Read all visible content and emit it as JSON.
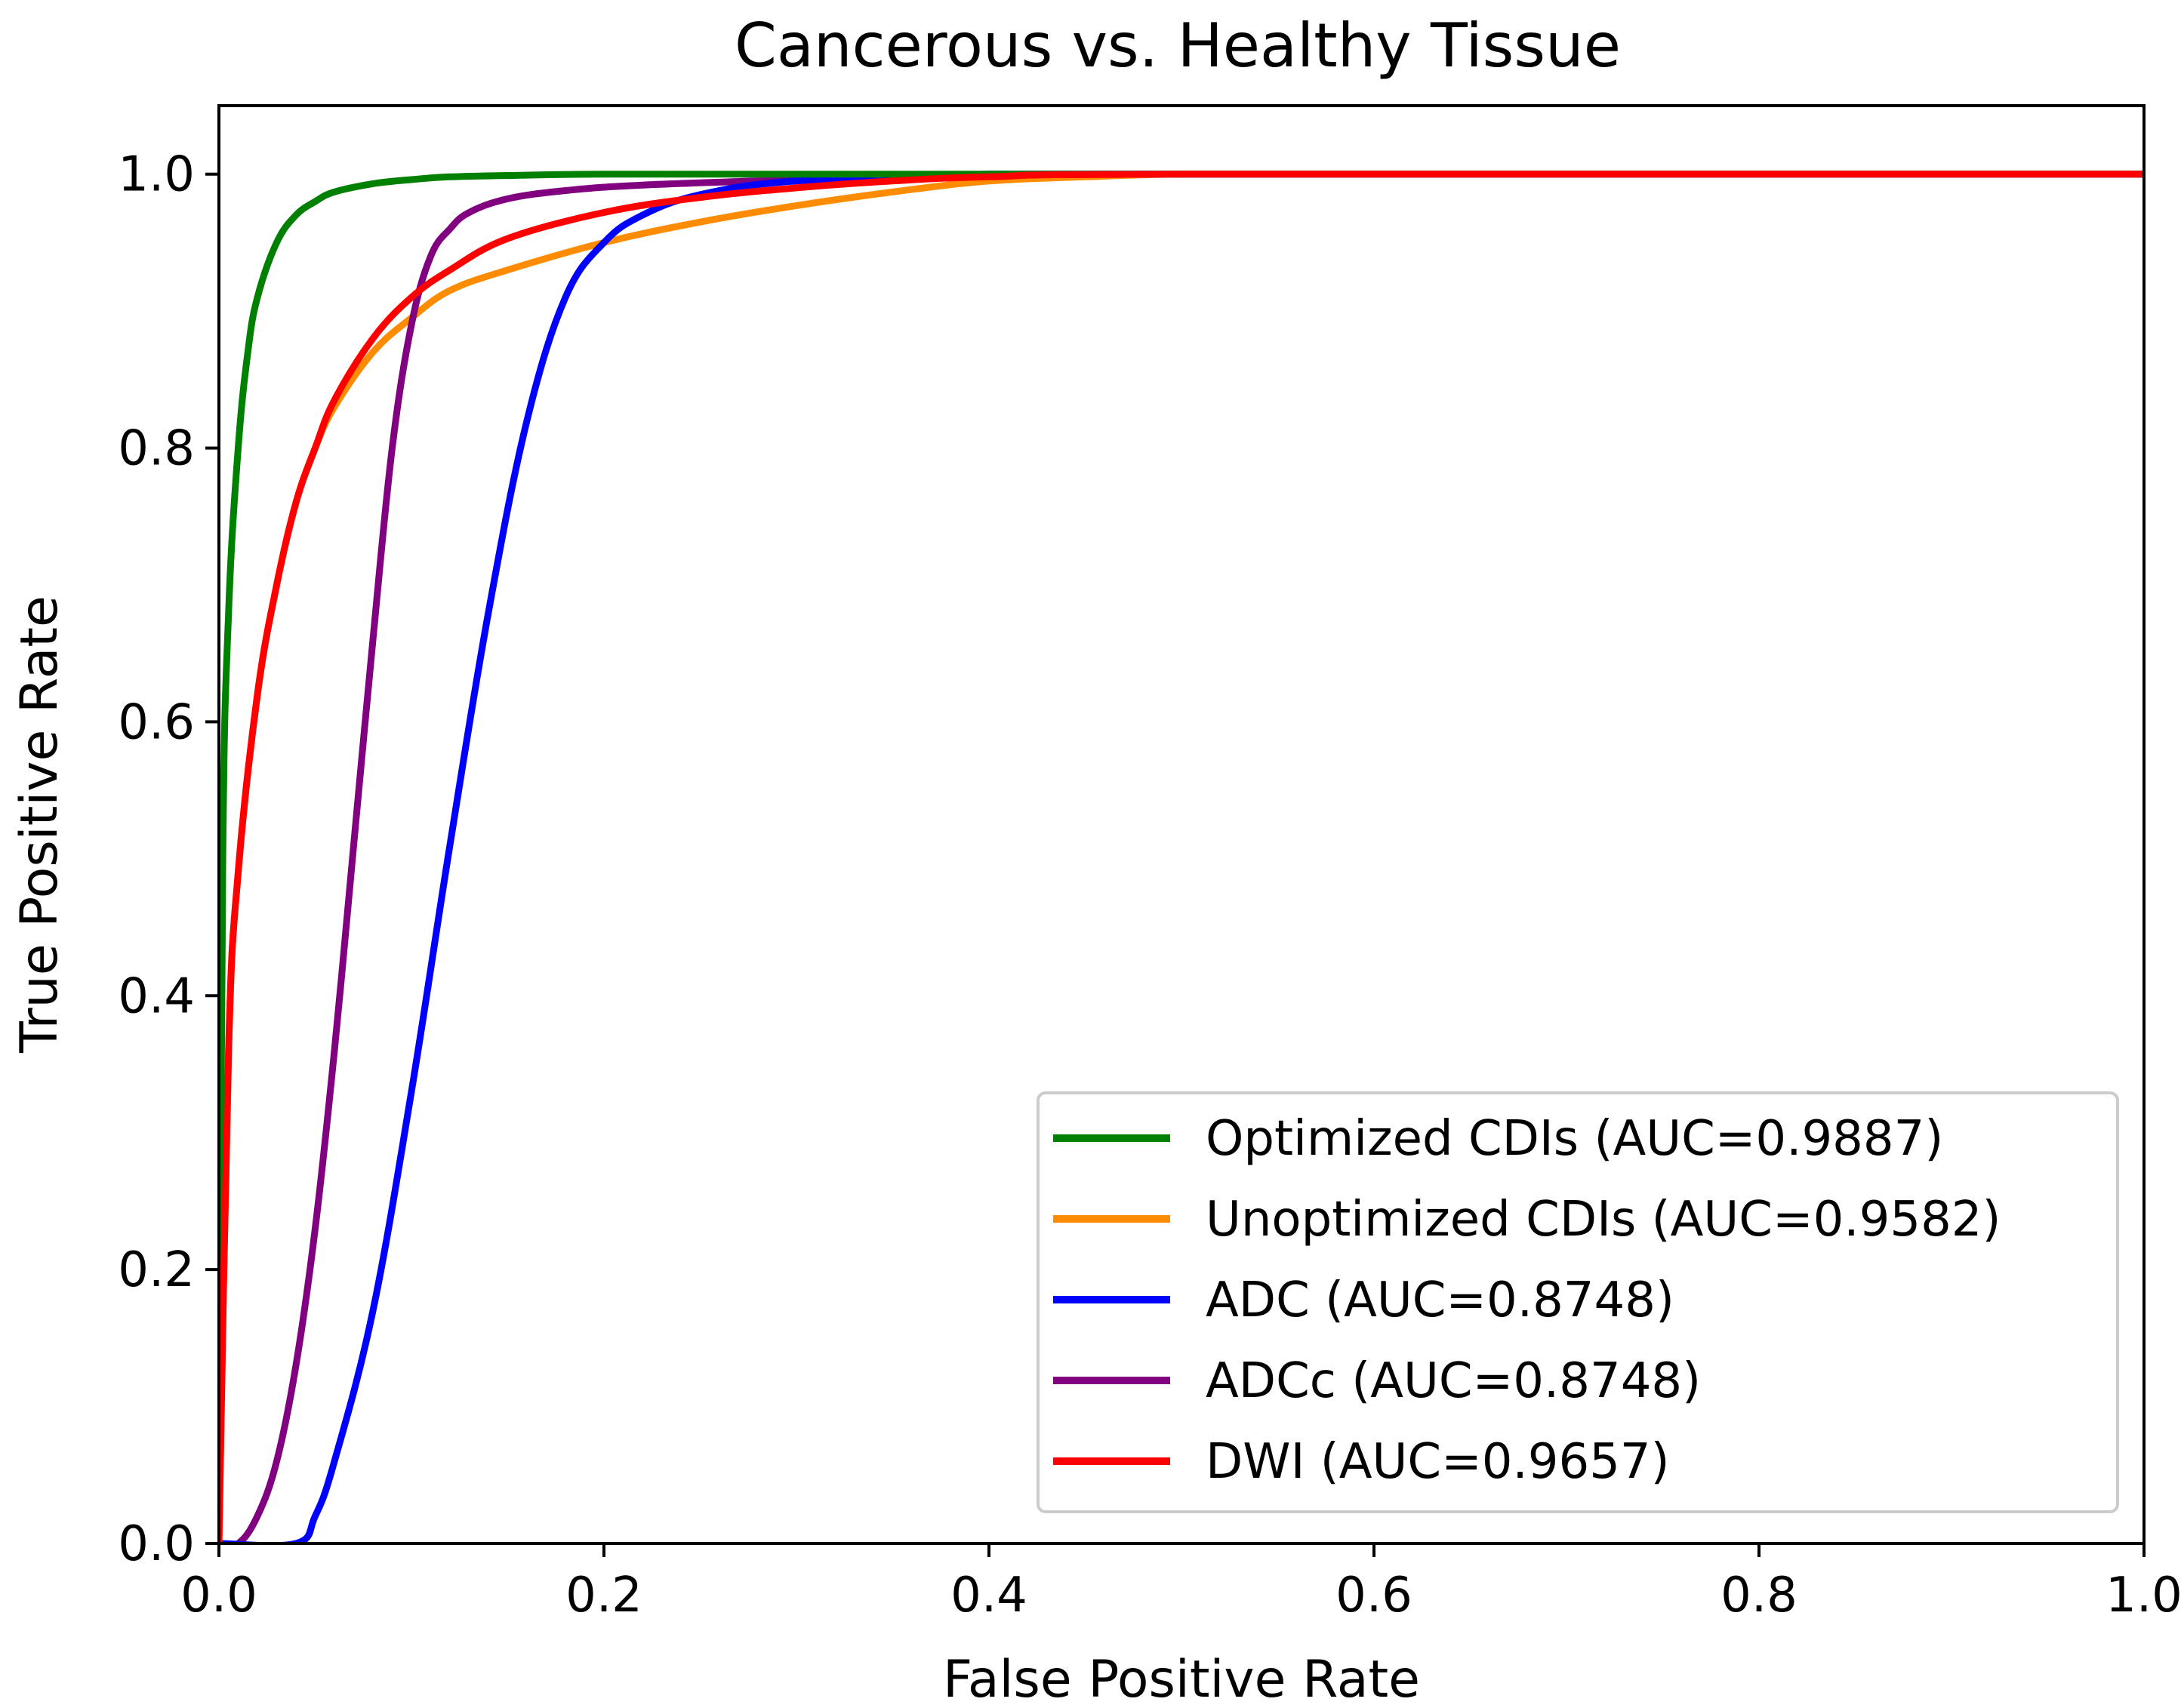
{
  "chart_data": {
    "type": "line",
    "title": "Cancerous vs. Healthy Tissue",
    "xlabel": "False Positive Rate",
    "ylabel": "True Positive Rate",
    "xlim": [
      0.0,
      1.0
    ],
    "ylim": [
      0.0,
      1.05
    ],
    "xticks": [
      0.0,
      0.2,
      0.4,
      0.6,
      0.8,
      1.0
    ],
    "yticks": [
      0.0,
      0.2,
      0.4,
      0.6,
      0.8,
      1.0
    ],
    "xtick_labels": [
      "0.0",
      "0.2",
      "0.4",
      "0.6",
      "0.8",
      "1.0"
    ],
    "ytick_labels": [
      "0.0",
      "0.2",
      "0.4",
      "0.6",
      "0.8",
      "1.0"
    ],
    "grid": false,
    "legend_position": "lower-right",
    "series": [
      {
        "name": "Optimized CDIs (AUC=0.9887)",
        "color": "#008000",
        "x": [
          0,
          0.002,
          0.005,
          0.01,
          0.015,
          0.02,
          0.03,
          0.04,
          0.05,
          0.06,
          0.08,
          0.1,
          0.12,
          0.15,
          0.2,
          0.3,
          0.5,
          1.0
        ],
        "y": [
          0,
          0.5,
          0.68,
          0.8,
          0.87,
          0.91,
          0.95,
          0.97,
          0.98,
          0.987,
          0.993,
          0.996,
          0.998,
          0.999,
          1.0,
          1.0,
          1.0,
          1.0
        ]
      },
      {
        "name": "Unoptimized CDIs (AUC=0.9582)",
        "color": "#ff8c00",
        "x": [
          0,
          0.005,
          0.01,
          0.02,
          0.03,
          0.04,
          0.05,
          0.06,
          0.08,
          0.1,
          0.12,
          0.15,
          0.2,
          0.25,
          0.3,
          0.35,
          0.4,
          0.45,
          0.5,
          0.6,
          0.8,
          1.0
        ],
        "y": [
          0,
          0.36,
          0.49,
          0.62,
          0.7,
          0.76,
          0.8,
          0.83,
          0.87,
          0.895,
          0.915,
          0.93,
          0.95,
          0.965,
          0.977,
          0.987,
          0.995,
          0.998,
          1.0,
          1.0,
          1.0,
          1.0
        ]
      },
      {
        "name": "ADC (AUC=0.8748)",
        "color": "#0000ff",
        "x": [
          0,
          0.04,
          0.05,
          0.06,
          0.08,
          0.1,
          0.12,
          0.14,
          0.16,
          0.18,
          0.2,
          0.22,
          0.25,
          0.3,
          0.4,
          0.5,
          1.0
        ],
        "y": [
          0,
          0,
          0.02,
          0.06,
          0.17,
          0.33,
          0.51,
          0.68,
          0.82,
          0.91,
          0.95,
          0.97,
          0.985,
          0.995,
          1.0,
          1.0,
          1.0
        ],
        "draw_order": 2
      },
      {
        "name": "ADCc (AUC=0.8748)",
        "color": "#800080",
        "x": [
          0,
          0.01,
          0.02,
          0.03,
          0.04,
          0.05,
          0.06,
          0.07,
          0.08,
          0.09,
          0.1,
          0.11,
          0.12,
          0.13,
          0.15,
          0.18,
          0.22,
          0.3,
          0.4,
          0.5,
          1.0
        ],
        "y": [
          0,
          0,
          0.02,
          0.06,
          0.13,
          0.23,
          0.36,
          0.51,
          0.66,
          0.8,
          0.89,
          0.94,
          0.96,
          0.972,
          0.982,
          0.988,
          0.992,
          0.996,
          1.0,
          1.0,
          1.0
        ],
        "draw_order": 1
      },
      {
        "name": "DWI (AUC=0.9657)",
        "color": "#ff0000",
        "x": [
          0,
          0.005,
          0.01,
          0.02,
          0.03,
          0.04,
          0.05,
          0.06,
          0.08,
          0.1,
          0.12,
          0.15,
          0.2,
          0.25,
          0.3,
          0.35,
          0.4,
          0.5,
          1.0
        ],
        "y": [
          0,
          0.36,
          0.49,
          0.62,
          0.7,
          0.76,
          0.8,
          0.835,
          0.88,
          0.91,
          0.93,
          0.953,
          0.972,
          0.983,
          0.99,
          0.995,
          0.998,
          1.0,
          1.0
        ],
        "draw_order": 4
      }
    ]
  }
}
